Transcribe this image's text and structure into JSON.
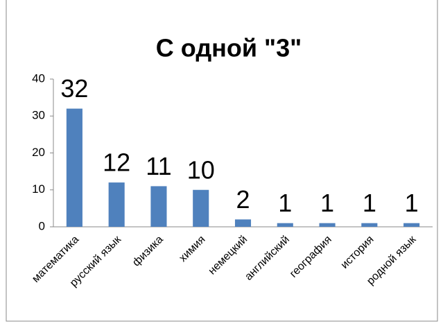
{
  "chart_data": {
    "type": "bar",
    "title": "С одной \"3\"",
    "categories": [
      "математика",
      "русский язык",
      "физика",
      "химия",
      "немецкий",
      "английский",
      "география",
      "история",
      "родной язык"
    ],
    "values": [
      32,
      12,
      11,
      10,
      2,
      1,
      1,
      1,
      1
    ],
    "color": "#4f81bd",
    "ylim": [
      0,
      40
    ],
    "yticks": [
      0,
      10,
      20,
      30,
      40
    ],
    "grid": false
  }
}
